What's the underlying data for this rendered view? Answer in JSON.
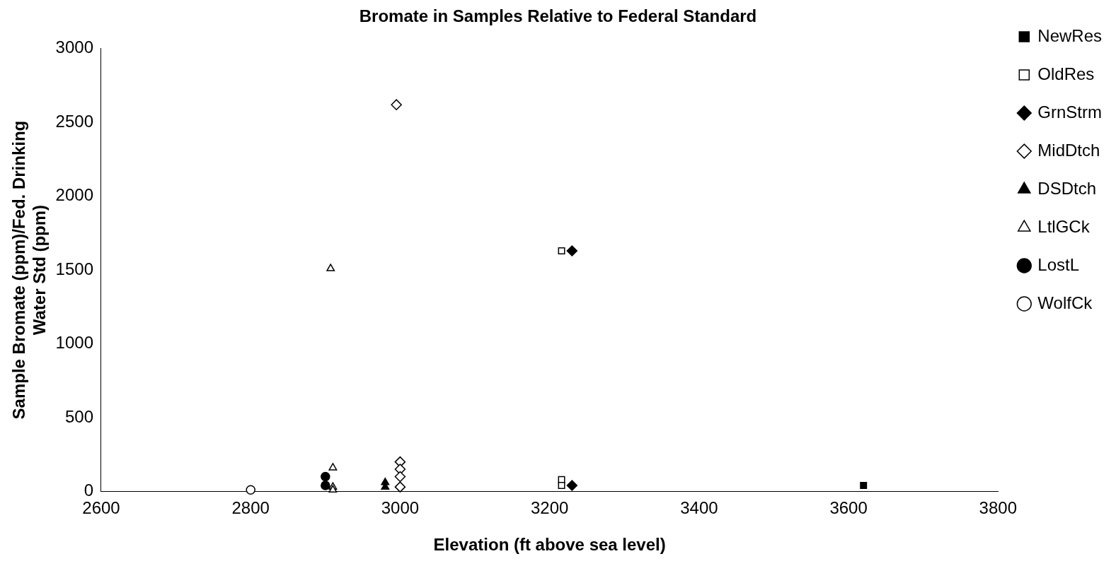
{
  "chart_data": {
    "type": "scatter",
    "title": "Bromate in Samples Relative to Federal Standard",
    "xlabel": "Elevation (ft above sea level)",
    "ylabel": "Sample Bromate (ppm)/Fed. Drinking\nWater Std (ppm)",
    "xlim": [
      2600,
      3800
    ],
    "xticks": [
      2600,
      2800,
      3000,
      3200,
      3400,
      3600,
      3800
    ],
    "ylim": [
      0,
      3000
    ],
    "yticks": [
      0,
      500,
      1000,
      1500,
      2000,
      2500,
      3000
    ],
    "grid": false,
    "legend": "top right",
    "series": [
      {
        "name": "NewRes",
        "color": "#000000",
        "marker": "square",
        "x": [
          3620
        ],
        "values": [
          40
        ]
      },
      {
        "name": "OldRes",
        "color": "#ffffff",
        "marker": "square",
        "x": [
          3216,
          3216,
          3216
        ],
        "values": [
          1630,
          80,
          40
        ]
      },
      {
        "name": "GrnStrm",
        "color": "#000000",
        "marker": "diamond",
        "x": [
          3230,
          3230
        ],
        "values": [
          1630,
          40
        ]
      },
      {
        "name": "MidDtch",
        "color": "#ffffff",
        "marker": "diamond",
        "x": [
          2995,
          3000,
          3000,
          3000,
          3000
        ],
        "values": [
          2620,
          200,
          150,
          100,
          30
        ]
      },
      {
        "name": "DSDtch",
        "color": "#000000",
        "marker": "triangle",
        "x": [
          2980,
          2980
        ],
        "values": [
          60,
          30
        ]
      },
      {
        "name": "LtlGCk",
        "color": "#ffffff",
        "marker": "triangle",
        "x": [
          2907,
          2910,
          2910,
          2910
        ],
        "values": [
          1510,
          160,
          30,
          10
        ]
      },
      {
        "name": "LostL",
        "color": "#000000",
        "marker": "circle",
        "x": [
          2900,
          2900
        ],
        "values": [
          100,
          40
        ]
      },
      {
        "name": "WolfCk",
        "color": "#ffffff",
        "marker": "circle",
        "x": [
          2800
        ],
        "values": [
          10
        ]
      }
    ]
  }
}
